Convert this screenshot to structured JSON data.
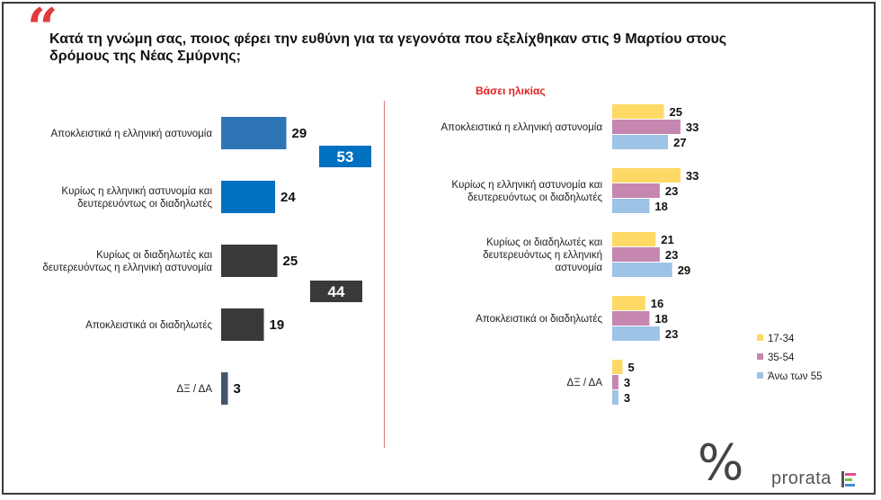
{
  "header": {
    "quote_mark": "“",
    "title": "Κατά τη γνώμη σας, ποιος φέρει την ευθύνη για τα γεγονότα που εξελίχθηκαν στις 9 Μαρτίου στους δρόμους της Νέας Σμύρνης;"
  },
  "chart_data": [
    {
      "type": "bar",
      "orientation": "horizontal",
      "categories": [
        "Αποκλειστικά η ελληνική αστυνομία",
        "Κυρίως η ελληνική αστυνομία και δευτερευόντως οι διαδηλωτές",
        "Κυρίως οι διαδηλωτές και δευτερευόντως η ελληνική αστυνομία",
        "Αποκλειστικά οι διαδηλωτές",
        "ΔΞ / ΔΑ"
      ],
      "category_lines": [
        [
          "Αποκλειστικά η ελληνική αστυνομία"
        ],
        [
          "Κυρίως η ελληνική αστυνομία και",
          "δευτερευόντως οι διαδηλωτές"
        ],
        [
          "Κυρίως οι διαδηλωτές και",
          "δευτερευόντως η ελληνική αστυνομία"
        ],
        [
          "Αποκλειστικά οι διαδηλωτές"
        ],
        [
          "ΔΞ / ΔΑ"
        ]
      ],
      "values": [
        29,
        24,
        25,
        19,
        3
      ],
      "colors": [
        "#2e75b6",
        "#0070c0",
        "#3b3838",
        "#3b3838",
        "#44546a"
      ],
      "aggregates": [
        {
          "label": "53",
          "value": 53,
          "color": "#0070c0"
        },
        {
          "label": "44",
          "value": 44,
          "color": "#3b3838"
        }
      ]
    },
    {
      "type": "bar",
      "orientation": "horizontal",
      "title": "Βάσει ηλικίας",
      "categories": [
        "Αποκλειστικά η ελληνική αστυνομία",
        "Κυρίως η ελληνική αστυνομία και δευτερευόντως οι διαδηλωτές",
        "Κυρίως οι διαδηλωτές και δευτερευόντως η ελληνική αστυνομία",
        "Αποκλειστικά οι διαδηλωτές",
        "ΔΞ / ΔΑ"
      ],
      "category_lines": [
        [
          "Αποκλειστικά η ελληνική αστυνομία"
        ],
        [
          "Κυρίως η ελληνική αστυνομία και",
          "δευτερευόντως οι διαδηλωτές"
        ],
        [
          "Κυρίως οι διαδηλωτές και",
          "δευτερευόντως η ελληνική",
          "αστυνομία"
        ],
        [
          "Αποκλειστικά οι διαδηλωτές"
        ],
        [
          "ΔΞ / ΔΑ"
        ]
      ],
      "series": [
        {
          "name": "17-34",
          "color": "#ffd966",
          "values": [
            25,
            33,
            21,
            16,
            5
          ]
        },
        {
          "name": "35-54",
          "color": "#c586b0",
          "values": [
            33,
            23,
            23,
            18,
            3
          ]
        },
        {
          "name": "Άνω των 55",
          "color": "#9dc3e6",
          "values": [
            27,
            18,
            29,
            23,
            3
          ]
        }
      ],
      "legend_position": "bottom-right"
    }
  ],
  "footer": {
    "percent_logo": "%",
    "brand": "prorata"
  }
}
